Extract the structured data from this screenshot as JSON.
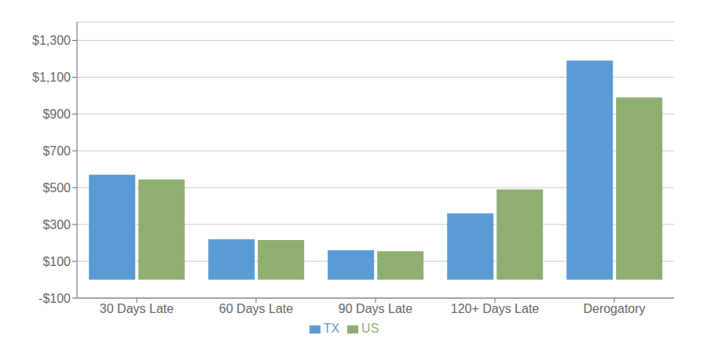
{
  "chart_data": {
    "type": "bar",
    "categories": [
      "30 Days Late",
      "60 Days Late",
      "90 Days Late",
      "120+ Days Late",
      "Derogatory"
    ],
    "series": [
      {
        "name": "TX",
        "color": "#5B9BD5",
        "values": [
          570,
          220,
          160,
          360,
          1190
        ]
      },
      {
        "name": "US",
        "color": "#8FAF72",
        "values": [
          545,
          215,
          155,
          490,
          990
        ]
      }
    ],
    "ylim": [
      -100,
      1400
    ],
    "yticks": [
      {
        "value": -100,
        "label": "-$100"
      },
      {
        "value": 100,
        "label": "$100"
      },
      {
        "value": 300,
        "label": "$300"
      },
      {
        "value": 500,
        "label": "$500"
      },
      {
        "value": 700,
        "label": "$700"
      },
      {
        "value": 900,
        "label": "$900"
      },
      {
        "value": 1100,
        "label": "$1,100"
      },
      {
        "value": 1300,
        "label": "$1,300"
      }
    ],
    "grid": true,
    "legend": "bottom"
  }
}
